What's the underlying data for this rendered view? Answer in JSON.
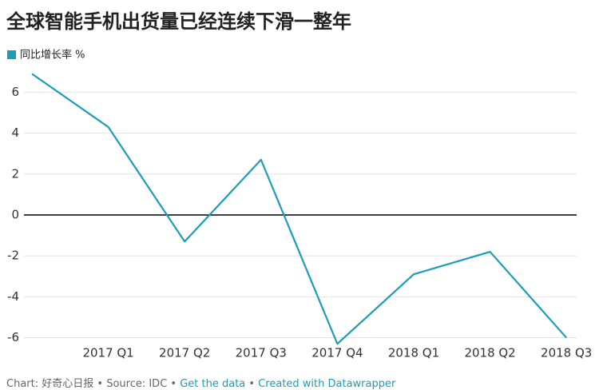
{
  "chart_data": {
    "type": "line",
    "title": "全球智能手机出货量已经连续下滑一整年",
    "categories": [
      null,
      "2017 Q1",
      "2017 Q2",
      "2017 Q3",
      "2017 Q4",
      "2018 Q1",
      "2018 Q2",
      "2018 Q3"
    ],
    "series": [
      {
        "name": "同比增长率 %",
        "color": "#1b9db7",
        "values": [
          6.9,
          4.3,
          -1.3,
          2.7,
          -6.3,
          -2.9,
          -1.8,
          -6.0
        ]
      }
    ],
    "ylim": [
      -6.4,
      7
    ],
    "yticks": [
      -6,
      -4,
      -2,
      0,
      2,
      4,
      6
    ],
    "grid": true,
    "footer": [
      "Chart: 好奇心日报",
      "Source: IDC",
      "Get the data",
      "Created with Datawrapper"
    ],
    "footer_separator": "•"
  }
}
